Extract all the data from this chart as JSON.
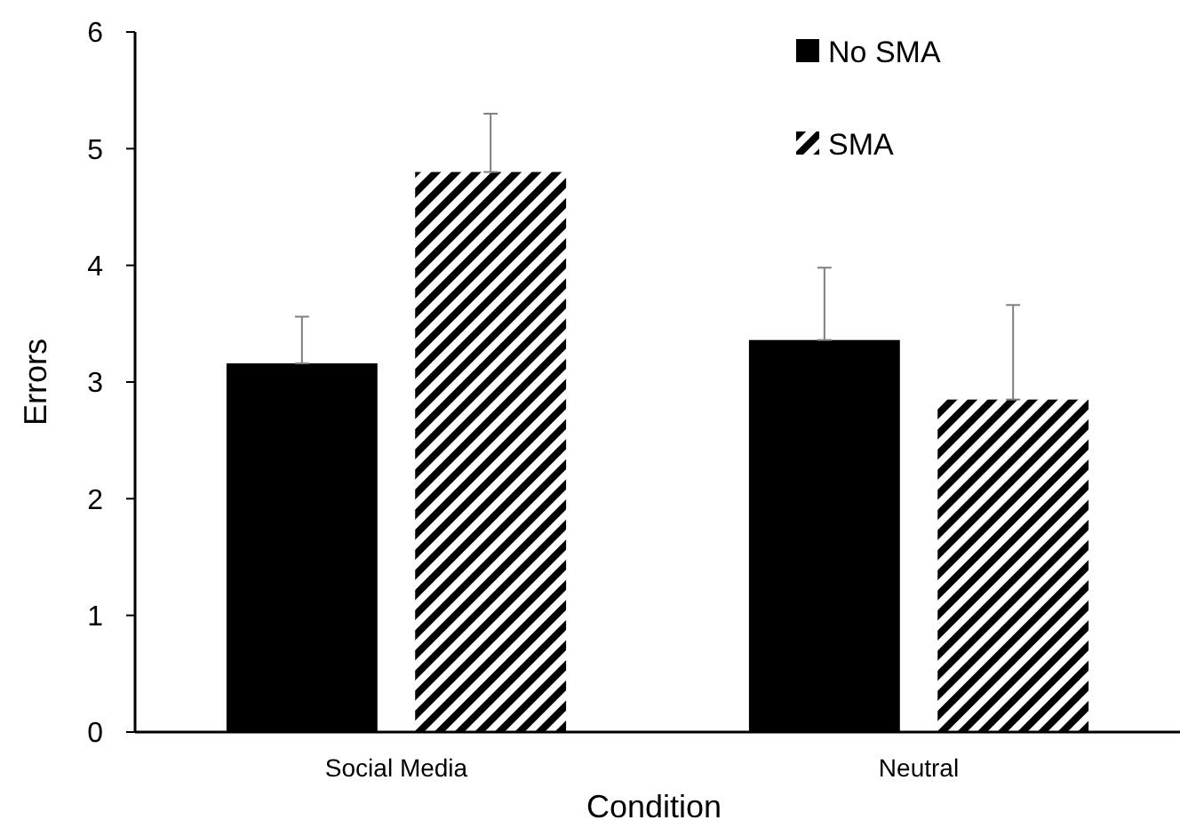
{
  "chart_data": {
    "type": "bar",
    "xlabel": "Condition",
    "ylabel": "Errors",
    "categories": [
      "Social Media",
      "Neutral"
    ],
    "series": [
      {
        "name": "No SMA",
        "color": "#000000",
        "values": [
          3.16,
          3.36
        ],
        "errors": [
          [
            3.16,
            3.56
          ],
          [
            3.36,
            3.98
          ]
        ]
      },
      {
        "name": "SMA",
        "color": "#000000",
        "values": [
          4.8,
          2.85
        ],
        "errors": [
          [
            4.8,
            5.3
          ],
          [
            2.85,
            3.66
          ]
        ]
      }
    ],
    "ylim": [
      0,
      6
    ],
    "yticks": [
      0,
      1,
      2,
      3,
      4,
      5,
      6
    ],
    "grid": false,
    "legend": "top right"
  }
}
